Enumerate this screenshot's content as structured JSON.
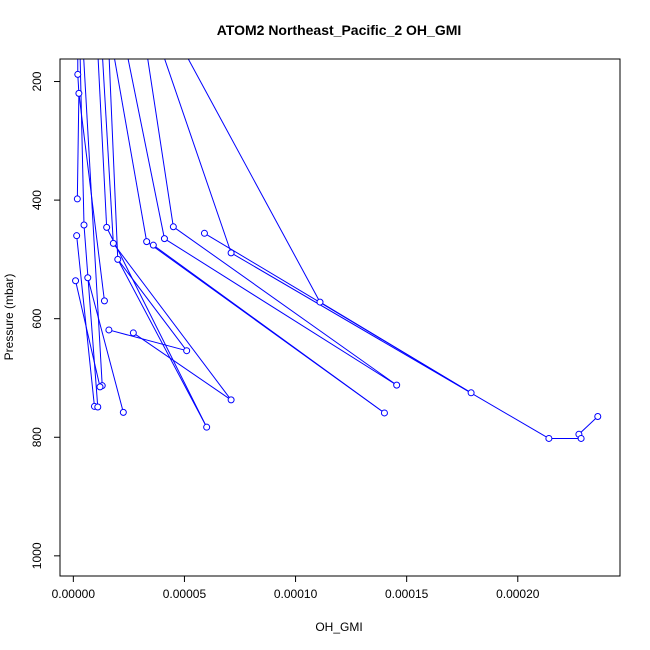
{
  "chart_data": {
    "type": "line",
    "title": "ATOM2 Northeast_Pacific_2 OH_GMI",
    "xlabel": "OH_GMI",
    "ylabel": "Pressure (mbar)",
    "xlim": [
      -6e-06,
      0.000246
    ],
    "ylim": [
      1034,
      162
    ],
    "y_reversed": true,
    "x_ticks": [
      0,
      5e-05,
      0.0001,
      0.00015,
      0.0002
    ],
    "x_tick_labels": [
      "0.00000",
      "0.00005",
      "0.00010",
      "0.00015",
      "0.00020"
    ],
    "y_ticks": [
      200,
      400,
      600,
      800,
      1000
    ],
    "y_tick_labels": [
      "200",
      "400",
      "600",
      "800",
      "1000"
    ],
    "series": [
      {
        "color": "#0000ff",
        "points": [
          {
            "x": 2e-06,
            "y": 188
          },
          {
            "x": 2.5e-06,
            "y": 220
          },
          {
            "x": 1.8e-06,
            "y": 398
          },
          {
            "x": 4.8e-06,
            "y": 442
          },
          {
            "x": 1.5e-05,
            "y": 446
          },
          {
            "x": 1.5e-06,
            "y": 460
          },
          {
            "x": 1.8e-05,
            "y": 473
          },
          {
            "x": 2e-05,
            "y": 500
          },
          {
            "x": 6.5e-06,
            "y": 531
          },
          {
            "x": 1e-06,
            "y": 536
          },
          {
            "x": 1.4e-05,
            "y": 570
          },
          {
            "x": 1.6e-05,
            "y": 619
          },
          {
            "x": 2.7e-05,
            "y": 624
          },
          {
            "x": 5.1e-05,
            "y": 654
          },
          {
            "x": 1.3e-05,
            "y": 713
          },
          {
            "x": 1.2e-05,
            "y": 715
          },
          {
            "x": 7.1e-05,
            "y": 737
          },
          {
            "x": 9.5e-06,
            "y": 748
          },
          {
            "x": 1.1e-05,
            "y": 749
          },
          {
            "x": 2.25e-05,
            "y": 758
          },
          {
            "x": 6e-05,
            "y": 783
          },
          {
            "x": 4.5e-05,
            "y": 445
          },
          {
            "x": 5.9e-05,
            "y": 456
          },
          {
            "x": 3.3e-05,
            "y": 470
          },
          {
            "x": 4.1e-05,
            "y": 465
          },
          {
            "x": 3.6e-05,
            "y": 476
          },
          {
            "x": 7.1e-05,
            "y": 489
          },
          {
            "x": 0.000111,
            "y": 572
          },
          {
            "x": 0.0001455,
            "y": 712
          },
          {
            "x": 0.000179,
            "y": 725
          },
          {
            "x": 0.00014,
            "y": 759
          },
          {
            "x": 0.000236,
            "y": 765
          },
          {
            "x": 0.0002275,
            "y": 795
          },
          {
            "x": 0.0002285,
            "y": 802
          },
          {
            "x": 0.000214,
            "y": 802
          }
        ],
        "segments": [
          [
            {
              "x": 2e-06,
              "y": 150
            },
            {
              "x": 2e-06,
              "y": 188
            }
          ],
          [
            {
              "x": 2e-06,
              "y": 188
            },
            {
              "x": 2.5e-06,
              "y": 220
            }
          ],
          [
            {
              "x": 2.5e-06,
              "y": 220
            },
            {
              "x": 1.8e-06,
              "y": 398
            }
          ],
          [
            {
              "x": 2.5e-06,
              "y": 220
            },
            {
              "x": 1.4e-05,
              "y": 570
            }
          ],
          [
            {
              "x": 1.5e-06,
              "y": 460
            },
            {
              "x": 9.5e-06,
              "y": 748
            }
          ],
          [
            {
              "x": 1e-06,
              "y": 536
            },
            {
              "x": 1.2e-05,
              "y": 715
            }
          ],
          [
            {
              "x": 3e-06,
              "y": 150
            },
            {
              "x": 4.8e-06,
              "y": 442
            }
          ],
          [
            {
              "x": 4.8e-06,
              "y": 442
            },
            {
              "x": 1.1e-05,
              "y": 749
            }
          ],
          [
            {
              "x": 4.5e-06,
              "y": 150
            },
            {
              "x": 1.3e-05,
              "y": 713
            }
          ],
          [
            {
              "x": 6.5e-06,
              "y": 531
            },
            {
              "x": 2.25e-05,
              "y": 758
            }
          ],
          [
            {
              "x": 1.1e-05,
              "y": 150
            },
            {
              "x": 1.5e-05,
              "y": 446
            }
          ],
          [
            {
              "x": 1.5e-05,
              "y": 446
            },
            {
              "x": 6e-05,
              "y": 783
            }
          ],
          [
            {
              "x": 1.3e-05,
              "y": 150
            },
            {
              "x": 1.8e-05,
              "y": 473
            }
          ],
          [
            {
              "x": 1.8e-05,
              "y": 473
            },
            {
              "x": 7.1e-05,
              "y": 737
            }
          ],
          [
            {
              "x": 2e-05,
              "y": 500
            },
            {
              "x": 6e-05,
              "y": 783
            }
          ],
          [
            {
              "x": 2e-05,
              "y": 500
            },
            {
              "x": 5.1e-05,
              "y": 654
            }
          ],
          [
            {
              "x": 1.6e-05,
              "y": 619
            },
            {
              "x": 5.1e-05,
              "y": 654
            }
          ],
          [
            {
              "x": 1.6e-05,
              "y": 150
            },
            {
              "x": 2e-05,
              "y": 500
            }
          ],
          [
            {
              "x": 2.7e-05,
              "y": 624
            },
            {
              "x": 7.1e-05,
              "y": 737
            }
          ],
          [
            {
              "x": 1.8e-05,
              "y": 150
            },
            {
              "x": 3.3e-05,
              "y": 470
            }
          ],
          [
            {
              "x": 2.4e-05,
              "y": 150
            },
            {
              "x": 4.1e-05,
              "y": 465
            }
          ],
          [
            {
              "x": 3.3e-05,
              "y": 150
            },
            {
              "x": 4.5e-05,
              "y": 445
            }
          ],
          [
            {
              "x": 4e-05,
              "y": 150
            },
            {
              "x": 7.1e-05,
              "y": 489
            }
          ],
          [
            {
              "x": 5.9e-05,
              "y": 456
            },
            {
              "x": 0.000179,
              "y": 725
            }
          ],
          [
            {
              "x": 4.1e-05,
              "y": 465
            },
            {
              "x": 0.0001455,
              "y": 712
            }
          ],
          [
            {
              "x": 3.6e-05,
              "y": 476
            },
            {
              "x": 0.00014,
              "y": 759
            }
          ],
          [
            {
              "x": 3.3e-05,
              "y": 470
            },
            {
              "x": 0.00014,
              "y": 759
            }
          ],
          [
            {
              "x": 4.5e-05,
              "y": 445
            },
            {
              "x": 0.0001455,
              "y": 712
            }
          ],
          [
            {
              "x": 7.1e-05,
              "y": 489
            },
            {
              "x": 0.000214,
              "y": 802
            }
          ],
          [
            {
              "x": 5e-05,
              "y": 150
            },
            {
              "x": 0.000111,
              "y": 572
            }
          ],
          [
            {
              "x": 0.000111,
              "y": 572
            },
            {
              "x": 0.000179,
              "y": 725
            }
          ],
          [
            {
              "x": 0.000214,
              "y": 802
            },
            {
              "x": 0.0002285,
              "y": 802
            }
          ],
          [
            {
              "x": 0.0002285,
              "y": 802
            },
            {
              "x": 0.0002275,
              "y": 795
            }
          ],
          [
            {
              "x": 0.0002275,
              "y": 795
            },
            {
              "x": 0.000236,
              "y": 765
            }
          ]
        ]
      }
    ],
    "grid": false,
    "legend": "none"
  }
}
